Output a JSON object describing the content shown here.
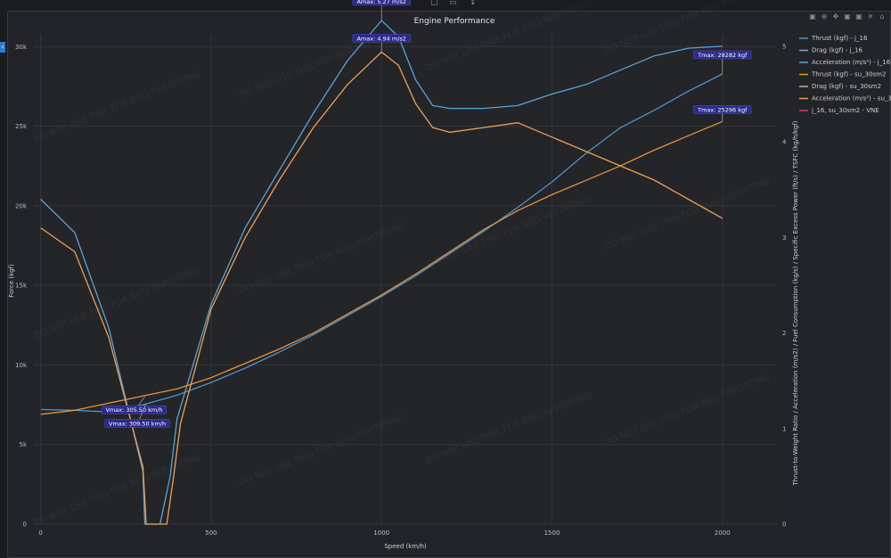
{
  "topbar": {
    "icons": [
      "▢",
      "▭",
      "↕"
    ]
  },
  "toolbar": {
    "icons": [
      "camera-icon",
      "zoom-icon",
      "pan-icon",
      "zoom-in-icon",
      "zoom-out-icon",
      "autoscale-icon",
      "reset-axes-icon"
    ]
  },
  "watermark": "DO NOT USE THIS FOR BUG REPORTING",
  "chart_data": {
    "type": "line",
    "title": "Engine Performance",
    "xlabel": "Speed (km/h)",
    "ylabel": "Force (kgf)",
    "y2label": "Thrust-to-Weight Ratio / Acceleration (m/s2) / Fuel Consumption (kg/s) / Specific Excess Power (ft/s) / TSFC (kg/h/kgf)",
    "xlim": [
      -20,
      2160
    ],
    "ylim": [
      0,
      30800
    ],
    "y2lim": [
      0,
      5.13
    ],
    "x_ticks": [
      0,
      500,
      1000,
      1500,
      2000
    ],
    "y_ticks": [
      0,
      5000,
      10000,
      15000,
      20000,
      25000,
      30000
    ],
    "y_tick_labels": [
      "0",
      "5k",
      "10k",
      "15k",
      "20k",
      "25k",
      "30k"
    ],
    "y2_ticks": [
      0,
      1,
      2,
      3,
      4,
      5
    ],
    "grid": true,
    "legend_position": "right",
    "series": [
      {
        "name": "Thrust (kgf) - j_16",
        "axis": "y",
        "color": "#4f93c9",
        "x": [
          0,
          100,
          200,
          300,
          400,
          500,
          600,
          700,
          800,
          900,
          1000,
          1100,
          1200,
          1300,
          1400,
          1500,
          1600,
          1700,
          1800,
          1900,
          2000
        ],
        "y": [
          7200,
          7150,
          7050,
          7500,
          8100,
          8900,
          9800,
          10800,
          11900,
          13100,
          14300,
          15600,
          17000,
          18400,
          19900,
          21500,
          23300,
          24900,
          26000,
          27200,
          28282
        ]
      },
      {
        "name": "Drag (kgf) - j_16",
        "axis": "y",
        "color": "#7fa7c7",
        "x": [],
        "y": []
      },
      {
        "name": "Acceleration (m/s²) - j_16",
        "axis": "y2",
        "color": "#58a4d8",
        "x": [
          0,
          100,
          200,
          300,
          305.5,
          350,
          380,
          400,
          500,
          600,
          700,
          800,
          900,
          1000,
          1050,
          1100,
          1150,
          1200,
          1300,
          1400,
          1500,
          1600,
          1700,
          1800,
          1900,
          2000
        ],
        "y": [
          3.4,
          3.05,
          2.05,
          0.55,
          0,
          0,
          0.5,
          1.1,
          2.3,
          3.1,
          3.7,
          4.3,
          4.85,
          5.27,
          5.1,
          4.65,
          4.38,
          4.35,
          4.35,
          4.38,
          4.5,
          4.6,
          4.75,
          4.9,
          4.98,
          5.0
        ]
      },
      {
        "name": "Thrust (kgf) - su_30sm2",
        "axis": "y",
        "color": "#e8923a",
        "x": [
          0,
          100,
          200,
          300,
          400,
          500,
          600,
          700,
          800,
          900,
          1000,
          1100,
          1200,
          1300,
          1400,
          1500,
          1600,
          1700,
          1800,
          1900,
          2000
        ],
        "y": [
          6900,
          7150,
          7600,
          8050,
          8500,
          9200,
          10100,
          11000,
          12000,
          13200,
          14400,
          15700,
          17100,
          18500,
          19700,
          20700,
          21600,
          22500,
          23500,
          24400,
          25296
        ]
      },
      {
        "name": "Drag (kgf) - su_30sm2",
        "axis": "y",
        "color": "#c7b28f",
        "x": [],
        "y": []
      },
      {
        "name": "Acceleration (m/s²) - su_30sm2",
        "axis": "y2",
        "color": "#f0a050",
        "x": [
          0,
          100,
          200,
          300,
          309.5,
          370,
          390,
          410,
          500,
          600,
          700,
          800,
          900,
          1000,
          1050,
          1100,
          1150,
          1200,
          1300,
          1400,
          1500,
          1600,
          1700,
          1800,
          1900,
          2000
        ],
        "y": [
          3.1,
          2.85,
          1.95,
          0.6,
          0,
          0,
          0.5,
          1.05,
          2.25,
          3.0,
          3.6,
          4.15,
          4.6,
          4.94,
          4.8,
          4.4,
          4.15,
          4.1,
          4.15,
          4.2,
          4.05,
          3.9,
          3.75,
          3.6,
          3.4,
          3.2
        ]
      },
      {
        "name": "j_16, su_30sm2 - VNE",
        "axis": "y",
        "color": "#e0316a",
        "x": [],
        "y": []
      }
    ],
    "annotations": [
      {
        "text": "Amax: 5.27 m/s2",
        "x": 1000,
        "y": 5.27,
        "axis": "y2"
      },
      {
        "text": "Amax: 4.94 m/s2",
        "x": 1000,
        "y": 4.94,
        "axis": "y2"
      },
      {
        "text": "Tmax: 28282 kgf",
        "x": 2000,
        "y": 28282,
        "axis": "y"
      },
      {
        "text": "Tmax: 25296 kgf",
        "x": 2000,
        "y": 25296,
        "axis": "y"
      },
      {
        "text": "Vmax: 305.50 km/h",
        "x": 305.5,
        "y": 8000,
        "axis": "y"
      },
      {
        "text": "Vmax: 309.50 km/h",
        "x": 309.5,
        "y": 7600,
        "axis": "y"
      }
    ]
  }
}
